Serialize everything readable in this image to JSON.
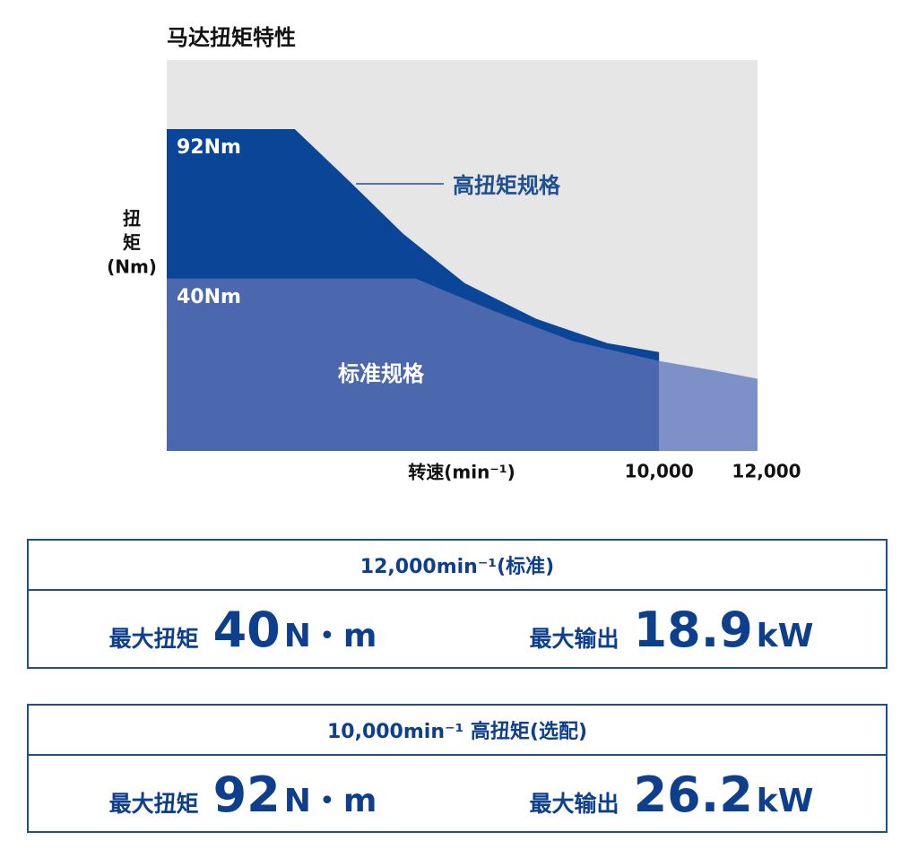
{
  "chart_data": {
    "type": "area",
    "title": "马达扭矩特性",
    "ylabel": [
      "扭",
      "矩",
      "(Nm)"
    ],
    "xlabel": "转速(min⁻¹)",
    "xlim": [
      0,
      12000
    ],
    "ylim": [
      -20,
      116
    ],
    "xticks": [
      {
        "value": 10000,
        "label": "10,000"
      },
      {
        "value": 12000,
        "label": "12,000"
      }
    ],
    "background": "#e6e6e6",
    "series": [
      {
        "name": "高扭矩规格",
        "color": "#0b4597",
        "x": [
          0,
          2600,
          3700,
          4800,
          6050,
          7500,
          8950,
          10000
        ],
        "values": [
          92,
          92,
          74,
          55.6,
          38.4,
          26,
          17.5,
          14.4
        ]
      },
      {
        "name": "标准规格",
        "color": "#4b68ae",
        "extended_color": "#7d91c8",
        "x": [
          0,
          5050,
          6600,
          8250,
          10000,
          11150,
          12000
        ],
        "values": [
          40,
          40,
          29,
          18.2,
          11.3,
          7.9,
          5.1
        ]
      }
    ],
    "annotations": [
      "92Nm",
      "40Nm"
    ]
  },
  "specs": [
    {
      "heading": "12,000min⁻¹(标准)",
      "items": [
        {
          "label": "最大扭矩",
          "value": 40,
          "unit": "N・m"
        },
        {
          "label": "最大输出",
          "value": 18.9,
          "unit": "kW"
        }
      ]
    },
    {
      "heading": "10,000min⁻¹ 高扭矩(选配)",
      "items": [
        {
          "label": "最大扭矩",
          "value": 92,
          "unit": "N・m"
        },
        {
          "label": "最大输出",
          "value": 26.2,
          "unit": "kW"
        }
      ]
    }
  ]
}
